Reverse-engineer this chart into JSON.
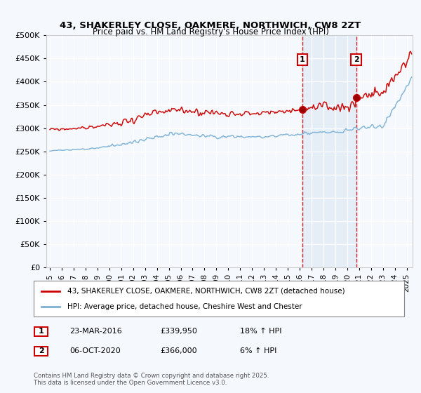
{
  "title": "43, SHAKERLEY CLOSE, OAKMERE, NORTHWICH, CW8 2ZT",
  "subtitle": "Price paid vs. HM Land Registry's House Price Index (HPI)",
  "ylim": [
    0,
    500000
  ],
  "yticks": [
    0,
    50000,
    100000,
    150000,
    200000,
    250000,
    300000,
    350000,
    400000,
    450000,
    500000
  ],
  "xlim_start": 1994.7,
  "xlim_end": 2025.5,
  "sale1_x": 2016.22,
  "sale1_y": 339950,
  "sale1_label": "1",
  "sale1_date": "23-MAR-2016",
  "sale1_price": "£339,950",
  "sale1_hpi": "18% ↑ HPI",
  "sale2_x": 2020.76,
  "sale2_y": 366000,
  "sale2_label": "2",
  "sale2_date": "06-OCT-2020",
  "sale2_price": "£366,000",
  "sale2_hpi": "6% ↑ HPI",
  "line1_color": "#cc0000",
  "line2_color": "#7ab0d4",
  "legend1_label": "43, SHAKERLEY CLOSE, OAKMERE, NORTHWICH, CW8 2ZT (detached house)",
  "legend2_label": "HPI: Average price, detached house, Cheshire West and Chester",
  "footer": "Contains HM Land Registry data © Crown copyright and database right 2025.\nThis data is licensed under the Open Government Licence v3.0.",
  "bg_color": "#f5f8fc",
  "grid_color": "#ffffff",
  "sale_vline_color": "#cc0000",
  "shade_color": "#dce8f5"
}
